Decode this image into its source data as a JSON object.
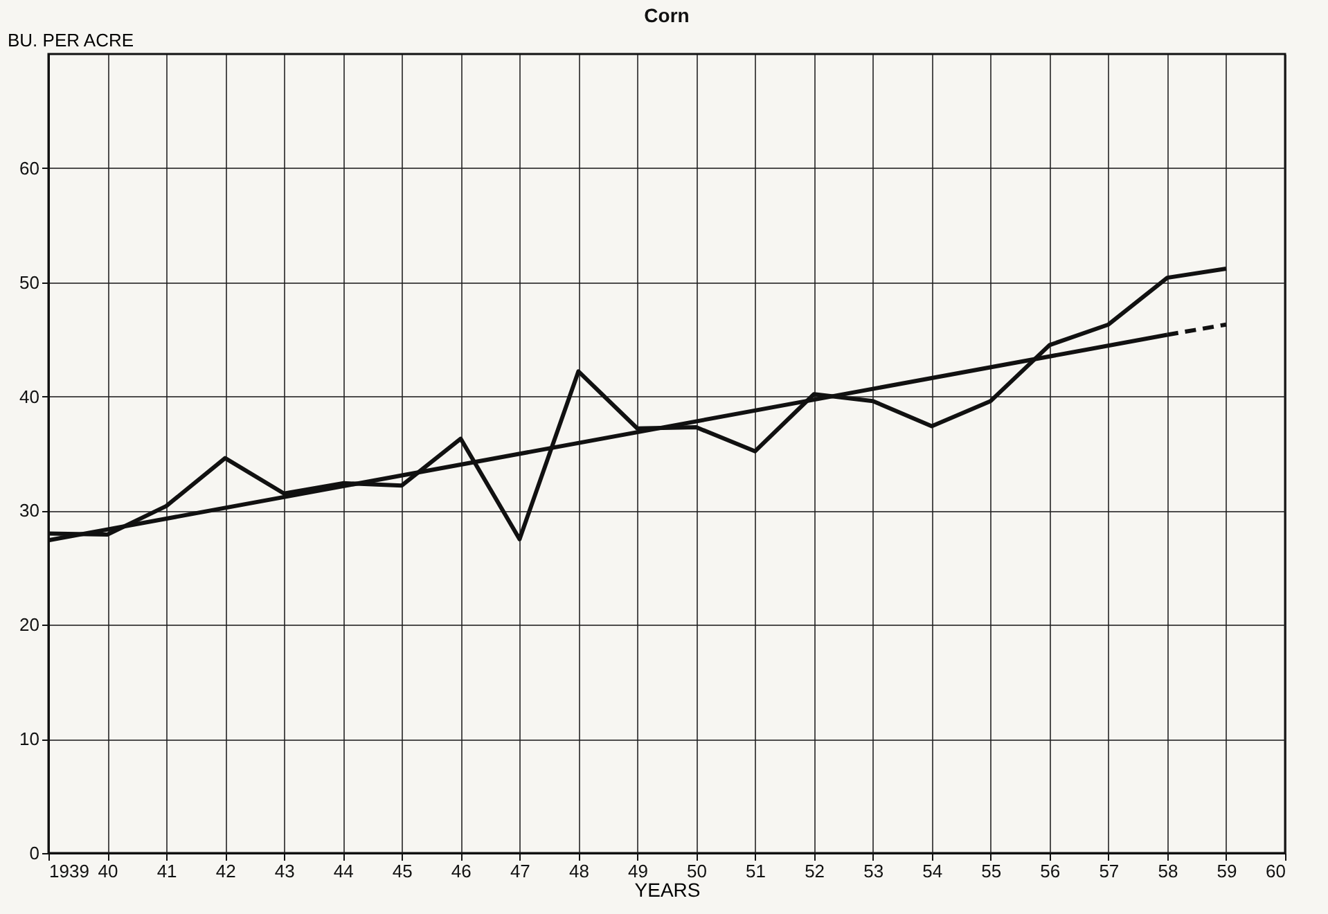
{
  "chart_data": {
    "type": "line",
    "title": "Corn",
    "xlabel": "YEARS",
    "ylabel": "BU. PER ACRE",
    "xlim": [
      1939,
      1960
    ],
    "ylim": [
      0,
      70
    ],
    "xticks": [
      {
        "value": 1939,
        "label": "1939"
      },
      {
        "value": 1940,
        "label": "40"
      },
      {
        "value": 1941,
        "label": "41"
      },
      {
        "value": 1942,
        "label": "42"
      },
      {
        "value": 1943,
        "label": "43"
      },
      {
        "value": 1944,
        "label": "44"
      },
      {
        "value": 1945,
        "label": "45"
      },
      {
        "value": 1946,
        "label": "46"
      },
      {
        "value": 1947,
        "label": "47"
      },
      {
        "value": 1948,
        "label": "48"
      },
      {
        "value": 1949,
        "label": "49"
      },
      {
        "value": 1950,
        "label": "50"
      },
      {
        "value": 1951,
        "label": "51"
      },
      {
        "value": 1952,
        "label": "52"
      },
      {
        "value": 1953,
        "label": "53"
      },
      {
        "value": 1954,
        "label": "54"
      },
      {
        "value": 1955,
        "label": "55"
      },
      {
        "value": 1956,
        "label": "56"
      },
      {
        "value": 1957,
        "label": "57"
      },
      {
        "value": 1958,
        "label": "58"
      },
      {
        "value": 1959,
        "label": "59"
      },
      {
        "value": 1960,
        "label": "60"
      }
    ],
    "yticks": [
      0,
      10,
      20,
      30,
      40,
      50,
      60
    ],
    "grid": true,
    "marker": "none",
    "series": [
      {
        "color": "#111111",
        "line_style": "solid",
        "x": [
          1939,
          1940,
          1941,
          1942,
          1943,
          1944,
          1945,
          1946,
          1947,
          1948,
          1949,
          1950,
          1951,
          1952,
          1953,
          1954,
          1955,
          1956,
          1957,
          1958,
          1959
        ],
        "values": [
          28,
          27.9,
          30.4,
          34.6,
          31.5,
          32.4,
          32.2,
          36.3,
          27.5,
          42.2,
          37.2,
          37.3,
          35.2,
          40.2,
          39.6,
          37.4,
          39.6,
          44.5,
          46.3,
          50.4,
          51.2
        ]
      },
      {
        "color": "#111111",
        "line_style": "solid",
        "x": [
          1939,
          1958
        ],
        "values": [
          27.4,
          45.4
        ]
      },
      {
        "color": "#111111",
        "line_style": "dashed",
        "x": [
          1958,
          1959
        ],
        "values": [
          45.4,
          46.3
        ]
      }
    ]
  }
}
